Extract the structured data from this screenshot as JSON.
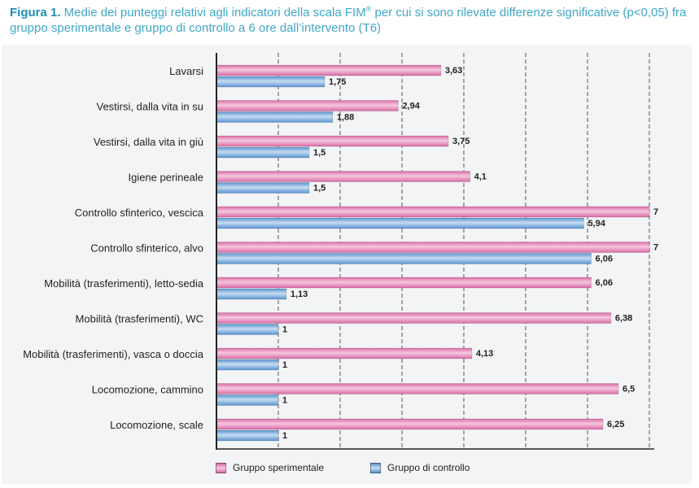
{
  "caption": {
    "label": "Figura 1.",
    "text_before": " Medie dei punteggi relativi agli indicatori della scala FIM",
    "superscript": "®",
    "text_after": " per cui si sono rilevate differenze significative (p<0,05) fra gruppo sperimentale e gruppo di controllo a 6 ore dall’intervento (T6)"
  },
  "colors": {
    "sperimentale": "#d96ca6",
    "controllo": "#5a94cf",
    "grid": "#555555",
    "axis": "#222222",
    "background": "#f3f4f6"
  },
  "chart_data": {
    "type": "bar",
    "orientation": "horizontal",
    "categories": [
      "Lavarsi",
      "Vestirsi, dalla vita in su",
      "Vestirsi, dalla vita in giù",
      "Igiene perineale",
      "Controllo sfinterico, vescica",
      "Controllo sfinterico, alvo",
      "Mobilità (trasferimenti), letto-sedia",
      "Mobilità (trasferimenti), WC",
      "Mobilità (trasferimenti), vasca o doccia",
      "Locomozione, cammino",
      "Locomozione, scale"
    ],
    "series": [
      {
        "name": "Gruppo sperimentale",
        "values": [
          3.63,
          2.94,
          3.75,
          4.1,
          7,
          7,
          6.06,
          6.38,
          4.13,
          6.5,
          6.25
        ],
        "labels": [
          "3,63",
          "2,94",
          "3,75",
          "4,1",
          "7",
          "7",
          "6,06",
          "6,38",
          "4,13",
          "6,5",
          "6,25"
        ]
      },
      {
        "name": "Gruppo di controllo",
        "values": [
          1.75,
          1.88,
          1.5,
          1.5,
          5.94,
          6.06,
          1.13,
          1,
          1,
          1,
          1
        ],
        "labels": [
          "1,75",
          "1,88",
          "1,5",
          "1,5",
          "5,94",
          "6,06",
          "1,13",
          "1",
          "1",
          "1",
          "1"
        ]
      }
    ],
    "xlim": [
      0,
      7
    ],
    "grid": true,
    "legend_position": "bottom-left"
  }
}
